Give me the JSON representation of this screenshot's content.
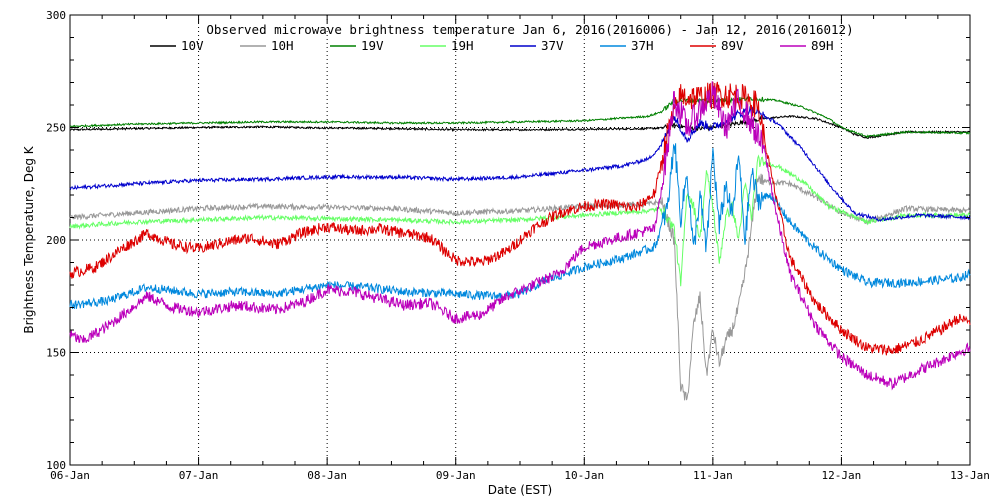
{
  "chart_data": {
    "type": "line",
    "title": "Observed microwave brightness temperature Jan  6, 2016(2016006) - Jan 12, 2016(2016012)",
    "xlabel": "Date (EST)",
    "ylabel": "Brightness Temperature, Deg K",
    "xlim": [
      0,
      7
    ],
    "ylim": [
      100,
      300
    ],
    "x_ticks": [
      {
        "value": 0,
        "label": "06-Jan"
      },
      {
        "value": 1,
        "label": "07-Jan"
      },
      {
        "value": 2,
        "label": "08-Jan"
      },
      {
        "value": 3,
        "label": "09-Jan"
      },
      {
        "value": 4,
        "label": "10-Jan"
      },
      {
        "value": 5,
        "label": "11-Jan"
      },
      {
        "value": 6,
        "label": "12-Jan"
      },
      {
        "value": 7,
        "label": "13-Jan"
      }
    ],
    "y_ticks": [
      {
        "value": 100,
        "label": "100"
      },
      {
        "value": 150,
        "label": "150"
      },
      {
        "value": 200,
        "label": "200"
      },
      {
        "value": 250,
        "label": "250"
      },
      {
        "value": 300,
        "label": "300"
      }
    ],
    "grid": true,
    "legend_position": "top",
    "series": [
      {
        "name": "10V",
        "color": "#000000",
        "points": [
          [
            0,
            249
          ],
          [
            0.5,
            249.5
          ],
          [
            1,
            250
          ],
          [
            1.5,
            250.3
          ],
          [
            2,
            249.8
          ],
          [
            2.5,
            249.5
          ],
          [
            3,
            249
          ],
          [
            3.5,
            249
          ],
          [
            4,
            249.2
          ],
          [
            4.5,
            249.5
          ],
          [
            4.6,
            249.8
          ],
          [
            4.7,
            251
          ],
          [
            4.8,
            250
          ],
          [
            4.9,
            249.5
          ],
          [
            5,
            250
          ],
          [
            5.2,
            252
          ],
          [
            5.4,
            254
          ],
          [
            5.6,
            255
          ],
          [
            5.8,
            254
          ],
          [
            6,
            250
          ],
          [
            6.1,
            247
          ],
          [
            6.2,
            245.5
          ],
          [
            6.5,
            248
          ],
          [
            7,
            248
          ]
        ]
      },
      {
        "name": "10H",
        "color": "#999999",
        "points": [
          [
            0,
            210
          ],
          [
            0.5,
            212
          ],
          [
            1,
            214
          ],
          [
            1.5,
            215
          ],
          [
            2,
            214.5
          ],
          [
            2.5,
            214
          ],
          [
            3,
            212
          ],
          [
            3.5,
            213
          ],
          [
            4,
            215
          ],
          [
            4.5,
            216
          ],
          [
            4.6,
            217
          ],
          [
            4.7,
            200
          ],
          [
            4.75,
            135
          ],
          [
            4.8,
            128
          ],
          [
            4.85,
            162
          ],
          [
            4.9,
            175
          ],
          [
            4.95,
            140
          ],
          [
            5.0,
            160
          ],
          [
            5.05,
            145
          ],
          [
            5.1,
            155
          ],
          [
            5.15,
            160
          ],
          [
            5.2,
            170
          ],
          [
            5.25,
            185
          ],
          [
            5.3,
            205
          ],
          [
            5.35,
            228
          ],
          [
            5.4,
            226
          ],
          [
            5.6,
            225
          ],
          [
            5.8,
            219
          ],
          [
            6,
            212
          ],
          [
            6.2,
            208
          ],
          [
            6.5,
            214
          ],
          [
            7,
            213
          ]
        ]
      },
      {
        "name": "19V",
        "color": "#008000",
        "points": [
          [
            0,
            250.5
          ],
          [
            0.5,
            251.5
          ],
          [
            1,
            252
          ],
          [
            1.5,
            252.5
          ],
          [
            2,
            252.5
          ],
          [
            2.5,
            252
          ],
          [
            3,
            252
          ],
          [
            3.5,
            252.5
          ],
          [
            4,
            253
          ],
          [
            4.5,
            255
          ],
          [
            4.6,
            257
          ],
          [
            4.7,
            262
          ],
          [
            4.9,
            262
          ],
          [
            5.1,
            262
          ],
          [
            5.3,
            263
          ],
          [
            5.5,
            262
          ],
          [
            5.7,
            259
          ],
          [
            5.9,
            254
          ],
          [
            6,
            250
          ],
          [
            6.2,
            246
          ],
          [
            6.5,
            248
          ],
          [
            7,
            247.5
          ]
        ]
      },
      {
        "name": "19H",
        "color": "#66ff66",
        "points": [
          [
            0,
            206
          ],
          [
            0.5,
            208
          ],
          [
            1,
            209
          ],
          [
            1.5,
            210
          ],
          [
            2,
            209.5
          ],
          [
            2.5,
            209
          ],
          [
            3,
            208
          ],
          [
            3.5,
            209
          ],
          [
            4,
            211
          ],
          [
            4.5,
            213
          ],
          [
            4.6,
            214
          ],
          [
            4.7,
            205
          ],
          [
            4.75,
            180
          ],
          [
            4.8,
            222
          ],
          [
            4.85,
            215
          ],
          [
            4.9,
            200
          ],
          [
            4.95,
            230
          ],
          [
            5.0,
            215
          ],
          [
            5.05,
            190
          ],
          [
            5.1,
            210
          ],
          [
            5.15,
            215
          ],
          [
            5.2,
            200
          ],
          [
            5.25,
            225
          ],
          [
            5.3,
            210
          ],
          [
            5.35,
            235
          ],
          [
            5.5,
            233
          ],
          [
            5.7,
            226
          ],
          [
            5.9,
            215
          ],
          [
            6.2,
            208
          ],
          [
            6.5,
            211
          ],
          [
            7,
            211
          ]
        ]
      },
      {
        "name": "37V",
        "color": "#0000cc",
        "points": [
          [
            0,
            223
          ],
          [
            0.5,
            225
          ],
          [
            1,
            226.5
          ],
          [
            1.5,
            227
          ],
          [
            2,
            228
          ],
          [
            2.5,
            228
          ],
          [
            3,
            227
          ],
          [
            3.5,
            228
          ],
          [
            4,
            231
          ],
          [
            4.3,
            233
          ],
          [
            4.5,
            236
          ],
          [
            4.6,
            242
          ],
          [
            4.7,
            255
          ],
          [
            4.8,
            245
          ],
          [
            4.9,
            252
          ],
          [
            5,
            250
          ],
          [
            5.1,
            253
          ],
          [
            5.2,
            256
          ],
          [
            5.3,
            258
          ],
          [
            5.5,
            252
          ],
          [
            5.7,
            240
          ],
          [
            5.9,
            225
          ],
          [
            6.1,
            212
          ],
          [
            6.3,
            209
          ],
          [
            6.6,
            211
          ],
          [
            7,
            210
          ]
        ]
      },
      {
        "name": "37H",
        "color": "#0088dd",
        "points": [
          [
            0,
            171
          ],
          [
            0.3,
            173
          ],
          [
            0.6,
            179
          ],
          [
            1,
            176
          ],
          [
            1.3,
            177
          ],
          [
            1.6,
            176
          ],
          [
            2,
            180
          ],
          [
            2.3,
            179
          ],
          [
            2.6,
            177
          ],
          [
            3,
            176
          ],
          [
            3.3,
            175
          ],
          [
            3.5,
            176
          ],
          [
            3.7,
            182
          ],
          [
            4,
            188
          ],
          [
            4.3,
            192
          ],
          [
            4.55,
            197
          ],
          [
            4.65,
            215
          ],
          [
            4.7,
            245
          ],
          [
            4.75,
            210
          ],
          [
            4.8,
            230
          ],
          [
            4.85,
            195
          ],
          [
            4.9,
            220
          ],
          [
            4.95,
            195
          ],
          [
            5.0,
            240
          ],
          [
            5.05,
            205
          ],
          [
            5.1,
            225
          ],
          [
            5.15,
            210
          ],
          [
            5.2,
            238
          ],
          [
            5.25,
            200
          ],
          [
            5.3,
            230
          ],
          [
            5.35,
            218
          ],
          [
            5.45,
            220
          ],
          [
            5.6,
            208
          ],
          [
            5.8,
            196
          ],
          [
            6,
            187
          ],
          [
            6.2,
            181
          ],
          [
            6.5,
            181
          ],
          [
            6.9,
            183
          ],
          [
            7,
            185
          ]
        ]
      },
      {
        "name": "89V",
        "color": "#dd0000",
        "points": [
          [
            0,
            185
          ],
          [
            0.2,
            188
          ],
          [
            0.4,
            196
          ],
          [
            0.6,
            203
          ],
          [
            0.8,
            198
          ],
          [
            1,
            196
          ],
          [
            1.2,
            199
          ],
          [
            1.4,
            201
          ],
          [
            1.6,
            198
          ],
          [
            1.8,
            203
          ],
          [
            2,
            206
          ],
          [
            2.2,
            204
          ],
          [
            2.4,
            205
          ],
          [
            2.6,
            203
          ],
          [
            2.8,
            201
          ],
          [
            3,
            191
          ],
          [
            3.2,
            190
          ],
          [
            3.4,
            195
          ],
          [
            3.6,
            205
          ],
          [
            3.8,
            212
          ],
          [
            4,
            215
          ],
          [
            4.2,
            216
          ],
          [
            4.4,
            214
          ],
          [
            4.55,
            221
          ],
          [
            4.65,
            248
          ],
          [
            4.75,
            264
          ],
          [
            4.9,
            263
          ],
          [
            5.05,
            265
          ],
          [
            5.2,
            264
          ],
          [
            5.35,
            260
          ],
          [
            5.45,
            230
          ],
          [
            5.6,
            192
          ],
          [
            5.8,
            172
          ],
          [
            6,
            160
          ],
          [
            6.2,
            152
          ],
          [
            6.4,
            151
          ],
          [
            6.6,
            155
          ],
          [
            6.8,
            161
          ],
          [
            6.9,
            165
          ],
          [
            7,
            164
          ]
        ]
      },
      {
        "name": "89H",
        "color": "#bb00bb",
        "points": [
          [
            0,
            158
          ],
          [
            0.1,
            155
          ],
          [
            0.3,
            162
          ],
          [
            0.6,
            175
          ],
          [
            0.8,
            170
          ],
          [
            1,
            168
          ],
          [
            1.3,
            171
          ],
          [
            1.6,
            169
          ],
          [
            1.8,
            172
          ],
          [
            2,
            178
          ],
          [
            2.2,
            177
          ],
          [
            2.4,
            174
          ],
          [
            2.6,
            171
          ],
          [
            2.8,
            172
          ],
          [
            3,
            165
          ],
          [
            3.2,
            167
          ],
          [
            3.4,
            175
          ],
          [
            3.6,
            180
          ],
          [
            3.8,
            185
          ],
          [
            4,
            197
          ],
          [
            4.2,
            200
          ],
          [
            4.4,
            203
          ],
          [
            4.55,
            205
          ],
          [
            4.65,
            242
          ],
          [
            4.7,
            263
          ],
          [
            4.8,
            250
          ],
          [
            4.9,
            258
          ],
          [
            5,
            265
          ],
          [
            5.1,
            250
          ],
          [
            5.2,
            262
          ],
          [
            5.3,
            252
          ],
          [
            5.4,
            240
          ],
          [
            5.5,
            210
          ],
          [
            5.6,
            185
          ],
          [
            5.8,
            162
          ],
          [
            6,
            148
          ],
          [
            6.2,
            140
          ],
          [
            6.4,
            136
          ],
          [
            6.6,
            142
          ],
          [
            6.8,
            147
          ],
          [
            6.9,
            150
          ],
          [
            7,
            152
          ]
        ]
      }
    ]
  }
}
